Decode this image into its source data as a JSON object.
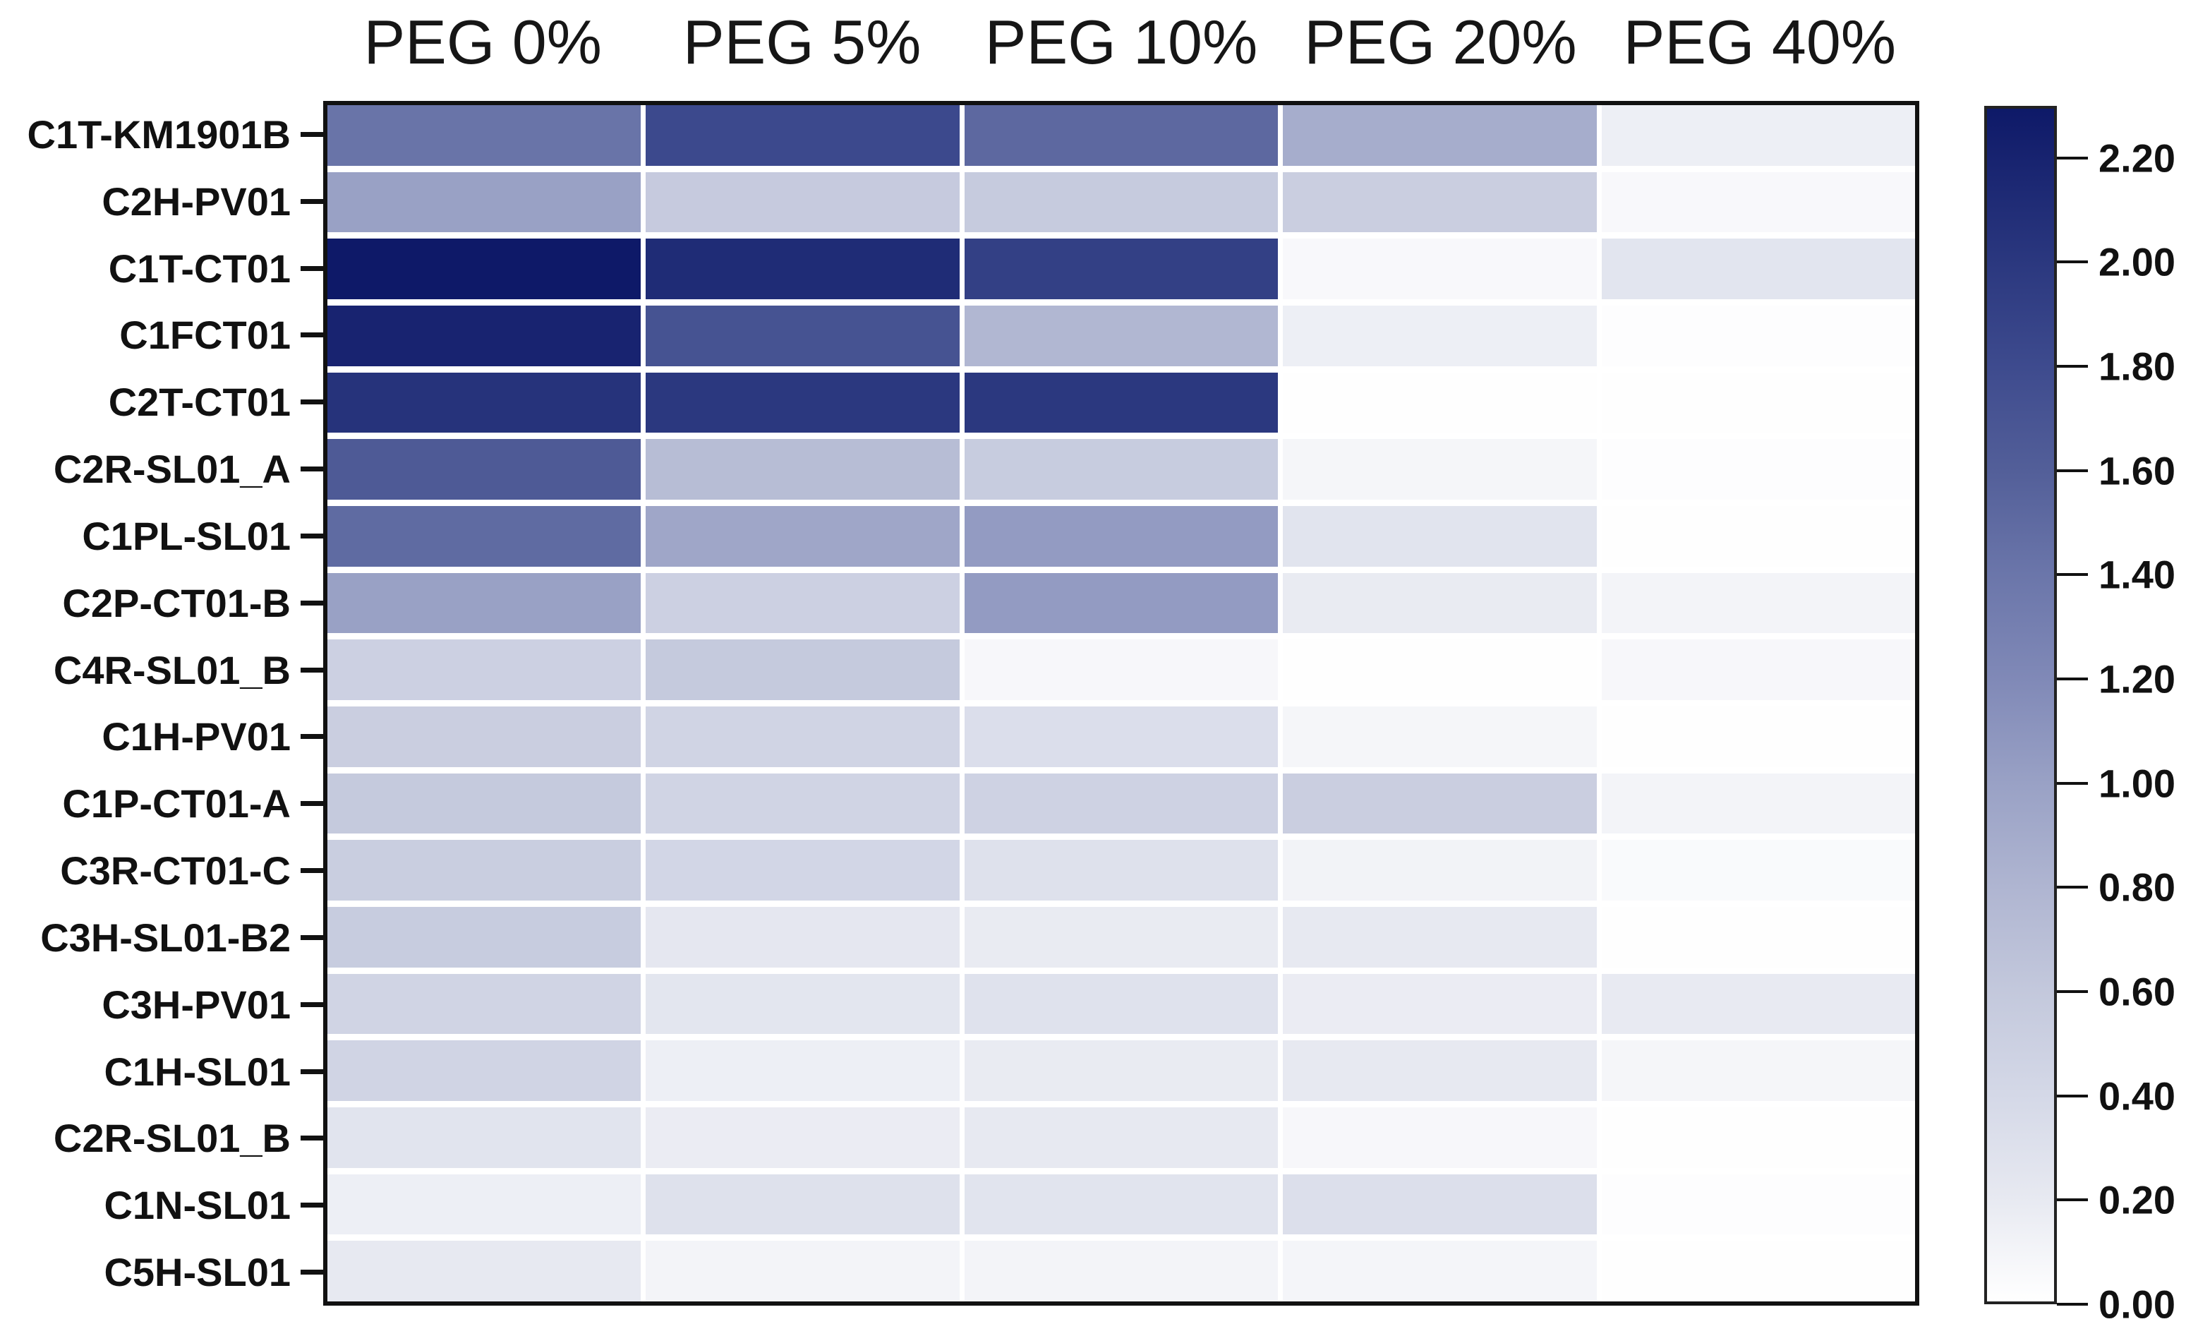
{
  "figure": {
    "background": "#ffffff"
  },
  "colors": {
    "text": "#1a1a1a",
    "heatmap_border": "#111111",
    "colorbar_border": "#222222",
    "tick": "#111111",
    "cell_gap": "#ffffff"
  },
  "chart_data": {
    "type": "heatmap",
    "title": "",
    "xlabel": "",
    "ylabel": "",
    "grid": false,
    "legend_position": "right-colorbar",
    "columns": [
      "PEG 0%",
      "PEG 5%",
      "PEG 10%",
      "PEG 20%",
      "PEG 40%"
    ],
    "rows": [
      "C1T-KM1901B",
      "C2H-PV01",
      "C1T-CT01",
      "C1FCT01",
      "C2T-CT01",
      "C2R-SL01_A",
      "C1PL-SL01",
      "C2P-CT01-B",
      "C4R-SL01_B",
      "C1H-PV01",
      "C1P-CT01-A",
      "C3R-CT01-C",
      "C3H-SL01-B2",
      "C3H-PV01",
      "C1H-SL01",
      "C2R-SL01_B",
      "C1N-SL01",
      "C5H-SL01"
    ],
    "values": [
      [
        1.42,
        1.82,
        1.52,
        0.88,
        0.15
      ],
      [
        1.0,
        0.57,
        0.56,
        0.52,
        0.06
      ],
      [
        2.3,
        2.12,
        1.92,
        0.06,
        0.25
      ],
      [
        2.2,
        1.72,
        0.78,
        0.15,
        0.02
      ],
      [
        2.05,
        2.0,
        2.0,
        0.01,
        0.01
      ],
      [
        1.65,
        0.72,
        0.55,
        0.08,
        0.02
      ],
      [
        1.5,
        0.95,
        1.05,
        0.26,
        0.01
      ],
      [
        1.0,
        0.5,
        1.05,
        0.18,
        0.1
      ],
      [
        0.5,
        0.58,
        0.07,
        0.01,
        0.07
      ],
      [
        0.52,
        0.45,
        0.33,
        0.08,
        0.01
      ],
      [
        0.58,
        0.45,
        0.47,
        0.52,
        0.1
      ],
      [
        0.53,
        0.42,
        0.3,
        0.11,
        0.05
      ],
      [
        0.55,
        0.22,
        0.18,
        0.2,
        0.01
      ],
      [
        0.45,
        0.24,
        0.28,
        0.17,
        0.19
      ],
      [
        0.45,
        0.15,
        0.18,
        0.2,
        0.08
      ],
      [
        0.26,
        0.17,
        0.2,
        0.07,
        0.01
      ],
      [
        0.15,
        0.3,
        0.26,
        0.32,
        0.02
      ],
      [
        0.2,
        0.1,
        0.1,
        0.09,
        0.01
      ]
    ],
    "colorbar": {
      "vmin": 0.0,
      "vmax": 2.3,
      "ticks": [
        2.2,
        2.0,
        1.8,
        1.6,
        1.4,
        1.2,
        1.0,
        0.8,
        0.6,
        0.4,
        0.2,
        0.0
      ],
      "tick_labels": [
        "2.20",
        "2.00",
        "1.80",
        "1.60",
        "1.40",
        "1.20",
        "1.00",
        "0.80",
        "0.60",
        "0.40",
        "0.20",
        "0.00"
      ]
    },
    "colormap_stops": [
      [
        0.0,
        "#ffffff"
      ],
      [
        0.2,
        "#e7e9f1"
      ],
      [
        0.4,
        "#d4d8e7"
      ],
      [
        0.6,
        "#c3c8dc"
      ],
      [
        0.8,
        "#afb5d1"
      ],
      [
        1.0,
        "#99a1c5"
      ],
      [
        1.2,
        "#8089b7"
      ],
      [
        1.4,
        "#6b76aa"
      ],
      [
        1.6,
        "#535f99"
      ],
      [
        1.8,
        "#3e4b8e"
      ],
      [
        2.0,
        "#2b387f"
      ],
      [
        2.3,
        "#0e1968"
      ]
    ]
  }
}
